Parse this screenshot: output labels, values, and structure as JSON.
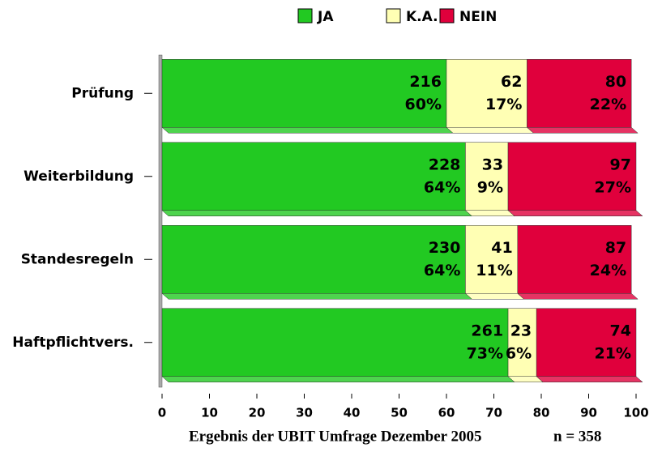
{
  "chart_data": {
    "type": "stacked-barh",
    "categories": [
      "Prüfung",
      "Weiterbildung",
      "Standesregeln",
      "Haftpflichtvers."
    ],
    "series": [
      {
        "name": "JA",
        "color": "#22c922",
        "values": [
          60,
          64,
          64,
          73
        ],
        "value_labels": [
          "60%",
          "64%",
          "64%",
          "73%"
        ],
        "counts": [
          216,
          228,
          230,
          261
        ]
      },
      {
        "name": "K.A.",
        "color": "#ffffb4",
        "values": [
          17,
          9,
          11,
          6
        ],
        "value_labels": [
          "17%",
          "9%",
          "11%",
          "6%"
        ],
        "counts": [
          62,
          33,
          41,
          23
        ]
      },
      {
        "name": "NEIN",
        "color": "#e0003c",
        "values": [
          22,
          27,
          24,
          21
        ],
        "value_labels": [
          "22%",
          "27%",
          "24%",
          "21%"
        ],
        "counts": [
          80,
          97,
          87,
          74
        ]
      }
    ],
    "xlim": [
      0,
      100
    ],
    "xticks": [
      0,
      10,
      20,
      30,
      40,
      50,
      60,
      70,
      80,
      90,
      100
    ],
    "legend": "top",
    "footnote": "Ergebnis der UBIT Umfrage Dezember 2005",
    "sample_size": "n = 358"
  }
}
